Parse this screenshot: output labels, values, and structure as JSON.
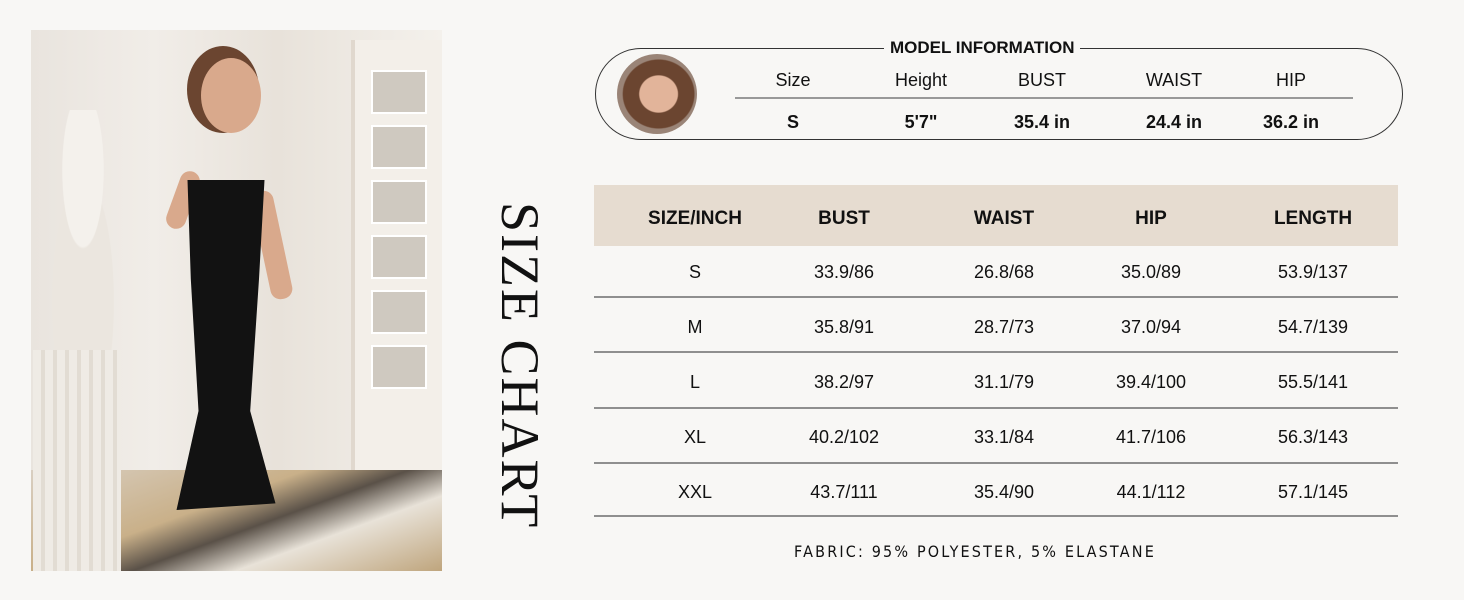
{
  "title": "SIZE CHART",
  "model_information": {
    "title": "MODEL INFORMATION",
    "headers": [
      "Size",
      "Height",
      "BUST",
      "WAIST",
      "HIP"
    ],
    "values": [
      "S",
      "5'7\"",
      "35.4 in",
      "24.4 in",
      "36.2 in"
    ]
  },
  "size_table": {
    "headers": [
      "SIZE/INCH",
      "BUST",
      "WAIST",
      "HIP",
      "LENGTH"
    ],
    "rows": [
      [
        "S",
        "33.9/86",
        "26.8/68",
        "35.0/89",
        "53.9/137"
      ],
      [
        "M",
        "35.8/91",
        "28.7/73",
        "37.0/94",
        "54.7/139"
      ],
      [
        "L",
        "38.2/97",
        "31.1/79",
        "39.4/100",
        "55.5/141"
      ],
      [
        "XL",
        "40.2/102",
        "33.1/84",
        "41.7/106",
        "56.3/143"
      ],
      [
        "XXL",
        "43.7/111",
        "35.4/90",
        "44.1/112",
        "57.1/145"
      ]
    ],
    "header_color": "#e6dcd0"
  },
  "fabric": "FABRIC: 95% POLYESTER, 5% ELASTANE"
}
